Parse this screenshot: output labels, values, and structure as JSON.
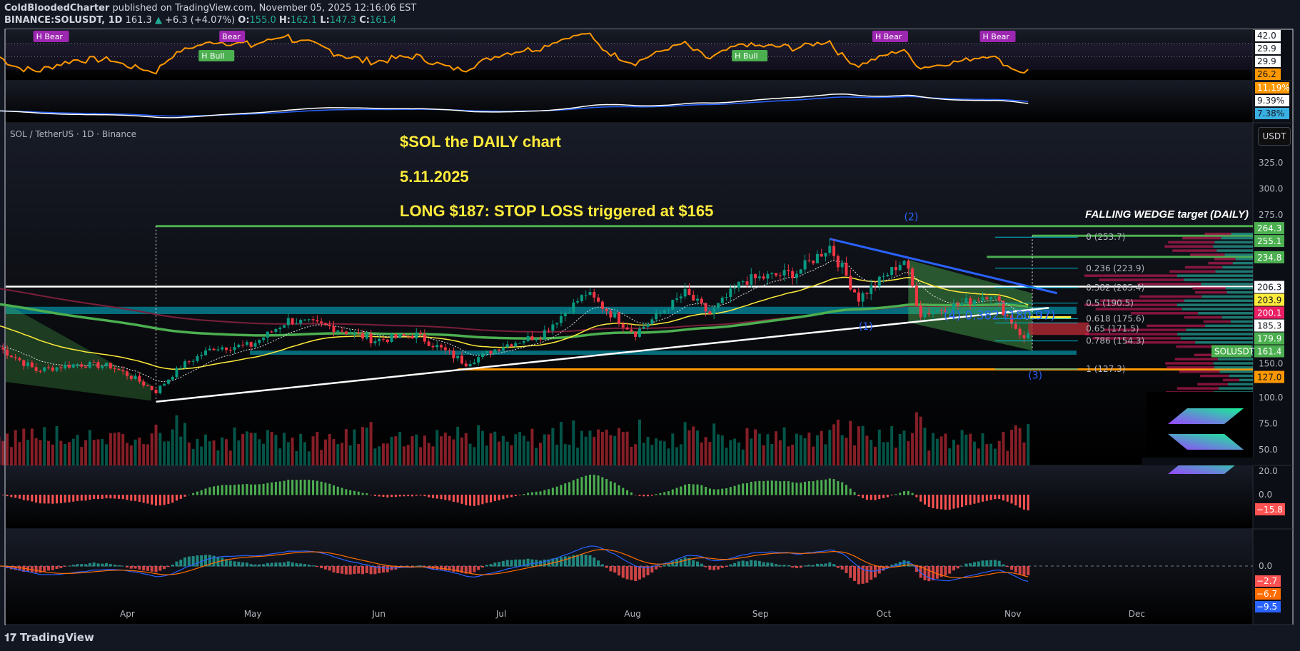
{
  "header": {
    "author": "ColdBloodedCharter",
    "published": "published on TradingView.com, November 05, 2025 12:16:06 EST",
    "symbol": "BINANCE:SOLUSDT, 1D",
    "last": "161.3",
    "change": "+6.3 (+4.07%)",
    "o_label": "O:",
    "o": "155.0",
    "h_label": "H:",
    "h": "162.1",
    "l_label": "L:",
    "l": "147.3",
    "c_label": "C:",
    "c": "161.4"
  },
  "pane_title": "SOL / TetherUS · 1D · Binance",
  "currency_button": "USDT",
  "annotations": {
    "line1": "$SOL  the DAILY chart",
    "line2": "5.11.2025",
    "line3": "LONG $187: STOP LOSS triggered at $165",
    "wedge": "FALLING WEDGE target (DAILY)"
  },
  "wave_labels": [
    {
      "text": "(1)",
      "date": "2025-09-25",
      "price": 165
    },
    {
      "text": "(2)",
      "date": "2025-10-06",
      "price": 270
    },
    {
      "text": "(3)",
      "date": "2025-11-05",
      "price": 118
    },
    {
      "text": "(4) 0.382 (180.97)",
      "date": "2025-11-10",
      "price": 179
    }
  ],
  "fib_levels": [
    {
      "label": "0 (253.7)",
      "price": 253.7
    },
    {
      "label": "0.236 (223.9)",
      "price": 223.9
    },
    {
      "label": "0.382 (205.4)",
      "price": 205.4
    },
    {
      "label": "0.5 (190.5)",
      "price": 190.5
    },
    {
      "label": "0.618 (175.6)",
      "price": 175.6
    },
    {
      "label": "0.65 (171.5)",
      "price": 171.5
    },
    {
      "label": "0.786 (154.3)",
      "price": 154.3
    },
    {
      "label": "1 (127.3)",
      "price": 127.3
    }
  ],
  "rsi_labels": [
    {
      "text": "H Bear",
      "date": "2025-03-10",
      "type": "bear"
    },
    {
      "text": "Bear",
      "date": "2025-04-24",
      "type": "bear"
    },
    {
      "text": "H Bull",
      "date": "2025-04-19",
      "type": "bull"
    },
    {
      "text": "H Bull",
      "date": "2025-08-26",
      "type": "bull"
    },
    {
      "text": "H Bear",
      "date": "2025-09-29",
      "type": "bear"
    },
    {
      "text": "H Bear",
      "date": "2025-10-25",
      "type": "bear"
    }
  ],
  "price_axis": {
    "ticks": [
      "325.0",
      "300.0",
      "275.0",
      "150.0",
      "100.0",
      "75.0",
      "50.0"
    ],
    "tick_prices": [
      325,
      300,
      275,
      150,
      100,
      75,
      50
    ],
    "badges": [
      {
        "text": "264.3",
        "price": 264.3,
        "bg": "#4caf50",
        "fg": "#ffffff"
      },
      {
        "text": "255.1",
        "price": 255.1,
        "bg": "#4caf50",
        "fg": "#ffffff"
      },
      {
        "text": "234.8",
        "price": 234.8,
        "bg": "#4caf50",
        "fg": "#ffffff"
      },
      {
        "text": "206.3",
        "price": 206.3,
        "bg": "#ffffff",
        "fg": "#131722"
      },
      {
        "text": "203.9",
        "price": 203.9,
        "bg": "#ffeb3b",
        "fg": "#131722"
      },
      {
        "text": "200.1",
        "price": 200.1,
        "bg": "#e91e63",
        "fg": "#ffffff"
      },
      {
        "text": "185.3",
        "price": 185.3,
        "bg": "#ffffff",
        "fg": "#131722"
      },
      {
        "text": "179.9",
        "price": 179.9,
        "bg": "#4caf50",
        "fg": "#ffffff"
      },
      {
        "text": "161.4",
        "price": 161.4,
        "bg": "#4caf50",
        "fg": "#ffffff"
      },
      {
        "text": "127.0",
        "price": 127.0,
        "bg": "#ff9800",
        "fg": "#131722"
      }
    ],
    "symbol_badge": "SOLUSDT"
  },
  "rsi_axis": {
    "ticks": [
      "42.0",
      "29.9",
      "29.9"
    ],
    "badge": "26.2"
  },
  "pane2_axis": {
    "badges": [
      "11.19%",
      "9.39%",
      "7.38%"
    ]
  },
  "hist_axis": {
    "ticks": [
      "20.0",
      "0.0"
    ],
    "badge": "−15.8"
  },
  "macd_axis": {
    "tick": "0.0",
    "badges": [
      "−2.7",
      "−6.7",
      "−9.5"
    ]
  },
  "time_axis": [
    "Apr",
    "May",
    "Jun",
    "Jul",
    "Aug",
    "Sep",
    "Oct",
    "Nov",
    "Dec"
  ],
  "footer": "TradingView",
  "colors": {
    "up": "#089981",
    "down": "#f23645",
    "accent": "#ffeb3b",
    "rsi": "#ff9800"
  },
  "chart_data": {
    "type": "candlestick",
    "title": "SOL / TetherUS · 1D · Binance",
    "ylim": [
      40,
      340
    ],
    "x_start": "2025-03-01",
    "x_end": "2025-12-20",
    "approx_closes": [
      [
        "2025-03-01",
        148
      ],
      [
        "2025-03-10",
        126
      ],
      [
        "2025-03-20",
        132
      ],
      [
        "2025-03-28",
        130
      ],
      [
        "2025-04-03",
        118
      ],
      [
        "2025-04-08",
        106
      ],
      [
        "2025-04-14",
        130
      ],
      [
        "2025-04-22",
        148
      ],
      [
        "2025-05-01",
        150
      ],
      [
        "2025-05-10",
        174
      ],
      [
        "2025-05-20",
        168
      ],
      [
        "2025-05-31",
        155
      ],
      [
        "2025-06-10",
        160
      ],
      [
        "2025-06-22",
        133
      ],
      [
        "2025-07-01",
        150
      ],
      [
        "2025-07-10",
        160
      ],
      [
        "2025-07-21",
        200
      ],
      [
        "2025-08-02",
        162
      ],
      [
        "2025-08-14",
        200
      ],
      [
        "2025-08-20",
        180
      ],
      [
        "2025-08-28",
        212
      ],
      [
        "2025-09-10",
        220
      ],
      [
        "2025-09-18",
        245
      ],
      [
        "2025-09-25",
        195
      ],
      [
        "2025-10-06",
        232
      ],
      [
        "2025-10-10",
        180
      ],
      [
        "2025-10-20",
        190
      ],
      [
        "2025-10-27",
        200
      ],
      [
        "2025-11-03",
        162
      ],
      [
        "2025-11-04",
        155
      ],
      [
        "2025-11-05",
        161.4
      ]
    ]
  }
}
